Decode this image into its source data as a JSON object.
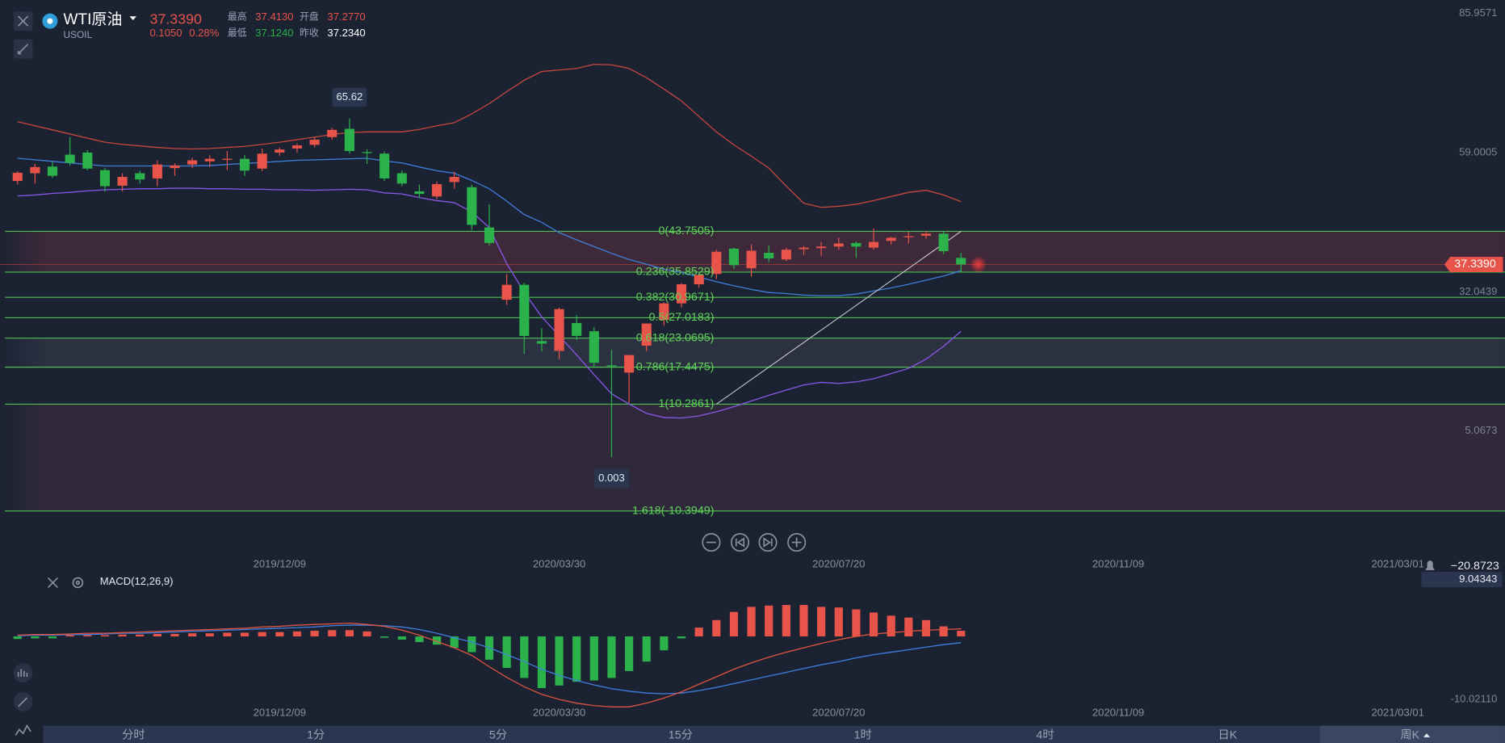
{
  "header": {
    "name": "WTI原油",
    "symbol": "USOIL",
    "change": "0.1050",
    "change_pct": "0.28%",
    "high_label": "最高",
    "high": "37.4130",
    "open_label": "开盘",
    "open": "37.2770",
    "low_label": "最低",
    "low": "37.1240",
    "prev_label": "昨收",
    "prev": "37.2340"
  },
  "chart_data": [
    {
      "type": "candlestick",
      "x": [
        "2019/08/26",
        "2019/09/02",
        "2019/09/09",
        "2019/09/16",
        "2019/09/23",
        "2019/09/30",
        "2019/10/07",
        "2019/10/14",
        "2019/10/21",
        "2019/10/28",
        "2019/11/04",
        "2019/11/11",
        "2019/11/18",
        "2019/11/25",
        "2019/12/02",
        "2019/12/09",
        "2019/12/16",
        "2019/12/23",
        "2019/12/30",
        "2020/01/06",
        "2020/01/13",
        "2020/01/20",
        "2020/01/27",
        "2020/02/03",
        "2020/02/10",
        "2020/02/17",
        "2020/02/24",
        "2020/03/02",
        "2020/03/09",
        "2020/03/16",
        "2020/03/23",
        "2020/03/30",
        "2020/04/06",
        "2020/04/13",
        "2020/04/20",
        "2020/04/27",
        "2020/05/04",
        "2020/05/11",
        "2020/05/18",
        "2020/05/25",
        "2020/06/01",
        "2020/06/08",
        "2020/06/15",
        "2020/06/22",
        "2020/06/29",
        "2020/07/06",
        "2020/07/13",
        "2020/07/20",
        "2020/07/27",
        "2020/08/03",
        "2020/08/10",
        "2020/08/17",
        "2020/08/24",
        "2020/08/31",
        "2020/09/07"
      ],
      "open": [
        53.5,
        55.0,
        56.3,
        58.6,
        59.0,
        55.6,
        52.6,
        55.0,
        54.0,
        56.0,
        56.7,
        57.3,
        57.6,
        57.8,
        55.9,
        59.0,
        59.8,
        60.5,
        62.0,
        63.6,
        59.1,
        58.8,
        55.0,
        51.5,
        50.5,
        53.3,
        52.3,
        44.5,
        30.5,
        33.4,
        22.5,
        20.6,
        26.0,
        24.4,
        17.8,
        16.4,
        21.6,
        26.6,
        29.8,
        33.5,
        35.5,
        40.4,
        36.6,
        39.6,
        38.3,
        40.3,
        40.5,
        40.8,
        41.5,
        40.6,
        41.9,
        42.6,
        42.9,
        43.3,
        38.6
      ],
      "high": [
        55.4,
        56.8,
        57.2,
        62.0,
        59.5,
        56.0,
        55.0,
        55.5,
        57.5,
        56.9,
        58.0,
        58.5,
        59.3,
        58.5,
        59.8,
        60.0,
        60.8,
        62.0,
        63.8,
        65.62,
        59.6,
        59.2,
        55.5,
        52.8,
        53.4,
        55.3,
        52.8,
        49.0,
        35.5,
        33.8,
        25.0,
        29.0,
        27.5,
        25.2,
        20.8,
        19.8,
        25.9,
        30.0,
        33.7,
        35.6,
        40.2,
        40.6,
        41.2,
        41.0,
        40.6,
        40.9,
        41.7,
        42.5,
        41.8,
        44.3,
        42.7,
        43.7,
        43.8,
        43.9,
        39.6
      ],
      "low": [
        52.8,
        53.0,
        54.1,
        56.5,
        55.6,
        51.5,
        51.5,
        53.0,
        52.5,
        54.5,
        56.0,
        56.2,
        55.6,
        54.5,
        55.4,
        58.4,
        59.0,
        60.0,
        61.5,
        58.8,
        56.8,
        53.5,
        52.5,
        50.2,
        50.0,
        52.0,
        44.0,
        41.0,
        29.5,
        20.0,
        20.5,
        19.0,
        22.7,
        17.5,
        0.003,
        10.5,
        20.5,
        25.5,
        29.0,
        32.8,
        34.5,
        36.5,
        35.0,
        37.8,
        38.0,
        39.2,
        39.0,
        40.2,
        38.6,
        40.2,
        41.2,
        41.4,
        42.3,
        39.3,
        35.9
      ],
      "close": [
        55.1,
        56.2,
        54.5,
        57.0,
        55.9,
        52.5,
        54.3,
        53.8,
        56.7,
        56.5,
        57.5,
        57.8,
        57.8,
        55.5,
        58.8,
        59.6,
        60.4,
        61.5,
        63.4,
        59.3,
        58.9,
        54.0,
        53.0,
        51.0,
        52.9,
        54.3,
        45.0,
        41.5,
        33.4,
        23.5,
        22.0,
        28.7,
        23.5,
        18.3,
        17.6,
        19.8,
        25.9,
        29.8,
        33.5,
        35.3,
        39.8,
        37.2,
        40.0,
        38.5,
        40.2,
        40.6,
        40.8,
        41.4,
        40.8,
        41.7,
        42.5,
        42.8,
        43.3,
        39.9,
        37.339
      ],
      "up_color": "#e8534a",
      "down_color": "#2bb24a",
      "upper_band": {
        "color": "#c9463d",
        "values": [
          65.0,
          64.2,
          63.4,
          62.6,
          61.8,
          61.0,
          60.6,
          60.3,
          60.0,
          59.8,
          59.7,
          59.8,
          60.0,
          60.2,
          60.6,
          61.0,
          61.5,
          62.0,
          62.5,
          62.9,
          63.0,
          63.0,
          63.0,
          63.5,
          64.2,
          64.8,
          66.5,
          68.5,
          70.8,
          73.0,
          74.7,
          75.0,
          75.3,
          76.1,
          76.0,
          75.3,
          73.5,
          71.3,
          69.0,
          66.0,
          63.0,
          60.5,
          58.3,
          56.0,
          52.5,
          49.2,
          48.4,
          48.6,
          49.0,
          49.7,
          50.5,
          51.3,
          51.7,
          50.8,
          49.5
        ]
      },
      "middle_band": {
        "color": "#3f7fdc",
        "values": [
          57.9,
          57.6,
          57.3,
          57.0,
          56.7,
          56.4,
          56.4,
          56.4,
          56.4,
          56.4,
          56.4,
          56.5,
          56.7,
          56.9,
          57.1,
          57.3,
          57.5,
          57.6,
          57.7,
          57.8,
          57.9,
          57.4,
          57.0,
          56.2,
          55.5,
          55.0,
          53.6,
          52.0,
          49.6,
          47.0,
          45.5,
          43.5,
          42.1,
          40.8,
          39.5,
          38.3,
          37.4,
          36.4,
          35.8,
          34.9,
          34.0,
          33.2,
          32.5,
          31.9,
          31.7,
          31.4,
          31.3,
          31.3,
          31.6,
          32.2,
          32.8,
          33.5,
          34.3,
          35.1,
          36.1
        ]
      },
      "lower_band": {
        "color": "#8b57e8",
        "values": [
          50.6,
          50.8,
          51.1,
          51.3,
          51.6,
          51.8,
          51.9,
          52.0,
          52.0,
          52.1,
          52.1,
          52.0,
          52.0,
          51.9,
          51.9,
          51.8,
          51.8,
          51.7,
          51.8,
          51.9,
          51.8,
          51.2,
          51.0,
          50.3,
          49.7,
          49.3,
          47.5,
          44.5,
          37.5,
          32.0,
          27.2,
          23.5,
          19.8,
          16.0,
          12.3,
          10.3,
          8.5,
          7.7,
          7.6,
          8.0,
          8.8,
          9.8,
          10.9,
          12.0,
          13.0,
          14.0,
          14.5,
          14.3,
          14.6,
          15.2,
          16.2,
          17.2,
          19.0,
          21.5,
          24.4
        ]
      },
      "xlim": [
        "2019/08/19",
        "2021/03/22"
      ],
      "xticks": [
        "2019/12/09",
        "2020/03/30",
        "2020/07/20",
        "2020/11/09",
        "2021/03/01"
      ],
      "ylim": [
        -18.34,
        88.55
      ],
      "yticks": [
        85.9571,
        59.0005,
        32.0439,
        5.0673
      ],
      "last_price": {
        "value": 37.339,
        "label": "37.3390"
      },
      "fib_color": "#4fc24f",
      "fib": [
        {
          "label": "0(43.7505)",
          "value": 43.7505,
          "band_color": "rgba(150,60,80,0.28)"
        },
        {
          "label": "0.236(35.8529)",
          "value": 35.8529
        },
        {
          "label": "0.382(30.9671)",
          "value": 30.9671
        },
        {
          "label": "0.5(27.0183)",
          "value": 27.0183
        },
        {
          "label": "0.618(23.0695)",
          "value": 23.0695,
          "band_color": "rgba(120,120,140,0.18)"
        },
        {
          "label": "0.786(17.4475)",
          "value": 17.4475
        },
        {
          "label": "1(10.2861)",
          "value": 10.2861,
          "band_color": "rgba(120,70,90,0.22)"
        },
        {
          "label": "1.618(-10.3949)",
          "value": -10.3949
        }
      ]
    },
    {
      "type": "macd",
      "title": "MACD(12,26,9)",
      "readout": "−20.8723",
      "histogram": [
        -0.4,
        -0.3,
        -0.3,
        0.2,
        0.2,
        0.2,
        0.3,
        0.3,
        0.4,
        0.4,
        0.5,
        0.5,
        0.6,
        0.6,
        0.7,
        0.7,
        0.8,
        0.9,
        1.0,
        1.0,
        0.8,
        -0.2,
        -0.5,
        -0.9,
        -1.3,
        -1.8,
        -2.5,
        -3.7,
        -5.0,
        -6.6,
        -8.2,
        -7.8,
        -7.2,
        -7.0,
        -6.6,
        -5.5,
        -4.0,
        -2.2,
        -0.3,
        1.4,
        2.6,
        3.9,
        4.7,
        4.9,
        5.0,
        5.0,
        4.7,
        4.6,
        4.3,
        3.8,
        3.3,
        3.0,
        2.6,
        1.6,
        0.9
      ],
      "dif": {
        "color": "#e0533f",
        "values": [
          0.2,
          0.3,
          0.3,
          0.4,
          0.5,
          0.5,
          0.6,
          0.7,
          0.8,
          0.9,
          1.0,
          1.1,
          1.2,
          1.3,
          1.5,
          1.6,
          1.8,
          1.9,
          2.0,
          2.1,
          1.9,
          1.6,
          1.0,
          0.2,
          -0.8,
          -1.8,
          -3.0,
          -4.8,
          -6.5,
          -8.0,
          -9.2,
          -10.0,
          -10.6,
          -11.0,
          -11.2,
          -11.2,
          -10.6,
          -9.8,
          -8.8,
          -7.6,
          -6.4,
          -5.2,
          -4.2,
          -3.3,
          -2.5,
          -1.8,
          -1.1,
          -0.5,
          0.0,
          0.4,
          0.6,
          0.8,
          1.0,
          1.1,
          1.2
        ]
      },
      "dea": {
        "color": "#3f7fe0",
        "values": [
          0.1,
          0.2,
          0.2,
          0.3,
          0.3,
          0.4,
          0.5,
          0.5,
          0.6,
          0.7,
          0.8,
          0.9,
          1.0,
          1.1,
          1.2,
          1.3,
          1.4,
          1.5,
          1.7,
          1.8,
          1.8,
          1.7,
          1.5,
          1.1,
          0.5,
          -0.2,
          -0.9,
          -1.8,
          -2.9,
          -4.0,
          -5.2,
          -6.2,
          -7.0,
          -7.7,
          -8.3,
          -8.7,
          -9.0,
          -9.1,
          -9.0,
          -8.6,
          -8.1,
          -7.5,
          -6.9,
          -6.3,
          -5.7,
          -5.1,
          -4.5,
          -4.0,
          -3.4,
          -2.9,
          -2.5,
          -2.1,
          -1.7,
          -1.3,
          -1.0
        ]
      },
      "up_color": "#e8534a",
      "down_color": "#2bb24a",
      "ylim": [
        -13.27,
        9.91
      ],
      "yticks": [
        9.04343,
        {
          "value": -10.0211,
          "label": "-10.02110"
        }
      ]
    }
  ],
  "timeframes": {
    "labels": [
      "分时",
      "1分",
      "5分",
      "15分",
      "1时",
      "4时",
      "日K",
      "周K"
    ],
    "active": 7
  }
}
